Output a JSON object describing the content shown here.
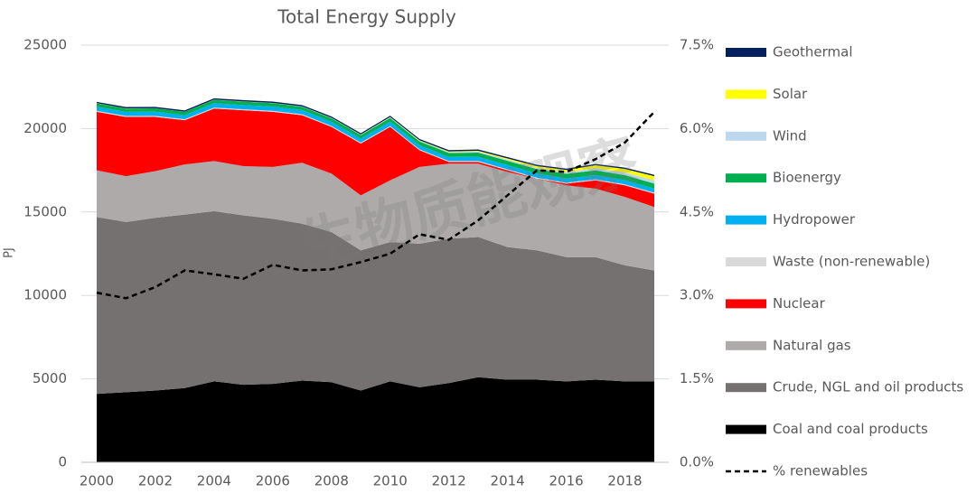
{
  "chart_data": {
    "type": "stacked-area",
    "title": "Total Energy Supply",
    "y_label": "PJ",
    "watermark": "生物质能观察",
    "x": [
      2000,
      2001,
      2002,
      2003,
      2004,
      2005,
      2006,
      2007,
      2008,
      2009,
      2010,
      2011,
      2012,
      2013,
      2014,
      2015,
      2016,
      2017,
      2018,
      2019
    ],
    "xlim": [
      2000,
      2019
    ],
    "xticks": [
      2000,
      2002,
      2004,
      2006,
      2008,
      2010,
      2012,
      2014,
      2016,
      2018
    ],
    "ylim": [
      0,
      25000
    ],
    "yticks": [
      0,
      5000,
      10000,
      15000,
      20000,
      25000
    ],
    "y2lim": [
      0,
      7.5
    ],
    "y2ticks": [
      {
        "value": 0,
        "label": "0.0%"
      },
      {
        "value": 1.5,
        "label": "1.5%"
      },
      {
        "value": 3,
        "label": "3.0%"
      },
      {
        "value": 4.5,
        "label": "4.5%"
      },
      {
        "value": 6,
        "label": "6.0%"
      },
      {
        "value": 7.5,
        "label": "7.5%"
      }
    ],
    "grid": true,
    "series": [
      {
        "name": "Coal and coal products",
        "color": "#000000",
        "values": [
          4100,
          4200,
          4300,
          4450,
          4850,
          4650,
          4700,
          4900,
          4800,
          4300,
          4850,
          4500,
          4750,
          5100,
          4950,
          4950,
          4850,
          4950,
          4850,
          4850
        ]
      },
      {
        "name": "Crude, NGL and oil products",
        "color": "#767171",
        "values": [
          10600,
          10200,
          10350,
          10400,
          10200,
          10150,
          9900,
          9400,
          9000,
          8400,
          8350,
          8600,
          8650,
          8400,
          7950,
          7750,
          7450,
          7350,
          6950,
          6650
        ]
      },
      {
        "name": "Natural gas",
        "color": "#aeaaaa",
        "values": [
          2800,
          2750,
          2800,
          3000,
          3000,
          2950,
          3100,
          3650,
          3500,
          3300,
          3700,
          4600,
          4500,
          4400,
          4500,
          4300,
          4300,
          4100,
          4100,
          3800
        ]
      },
      {
        "name": "Nuclear",
        "color": "#ff0000",
        "values": [
          3500,
          3550,
          3250,
          2650,
          3150,
          3350,
          3300,
          2850,
          2800,
          3100,
          3200,
          1000,
          100,
          100,
          100,
          0,
          100,
          500,
          700,
          800
        ]
      },
      {
        "name": "Waste (non-renewable)",
        "color": "#d9d9d9",
        "values": [
          60,
          60,
          60,
          60,
          60,
          60,
          60,
          60,
          60,
          60,
          60,
          60,
          60,
          60,
          60,
          60,
          60,
          60,
          60,
          60
        ]
      },
      {
        "name": "Hydropower",
        "color": "#00b0f0",
        "values": [
          250,
          240,
          250,
          240,
          260,
          250,
          260,
          250,
          250,
          240,
          260,
          240,
          240,
          250,
          250,
          240,
          250,
          250,
          250,
          240
        ]
      },
      {
        "name": "Bioenergy",
        "color": "#00b050",
        "values": [
          200,
          200,
          200,
          200,
          200,
          200,
          200,
          200,
          210,
          210,
          220,
          230,
          240,
          250,
          260,
          270,
          280,
          290,
          300,
          300
        ]
      },
      {
        "name": "Wind",
        "color": "#bdd7ee",
        "values": [
          0,
          0,
          0,
          0,
          5,
          5,
          10,
          10,
          15,
          20,
          30,
          40,
          50,
          60,
          70,
          80,
          100,
          130,
          160,
          200
        ]
      },
      {
        "name": "Solar",
        "color": "#ffff00",
        "values": [
          10,
          10,
          10,
          10,
          10,
          10,
          10,
          10,
          10,
          15,
          20,
          30,
          40,
          50,
          70,
          100,
          130,
          170,
          210,
          250
        ]
      },
      {
        "name": "Geothermal",
        "color": "#002060",
        "values": [
          80,
          80,
          80,
          80,
          80,
          80,
          80,
          80,
          80,
          80,
          80,
          80,
          80,
          80,
          80,
          80,
          80,
          80,
          80,
          80
        ]
      },
      {
        "name": "% renewables",
        "color": "#000000",
        "type": "line",
        "axis": "y2",
        "dash": true,
        "values": [
          3.05,
          2.95,
          3.15,
          3.45,
          3.38,
          3.3,
          3.55,
          3.45,
          3.47,
          3.6,
          3.75,
          4.1,
          4.0,
          4.35,
          4.8,
          5.25,
          5.22,
          5.45,
          5.75,
          6.3
        ]
      }
    ]
  }
}
